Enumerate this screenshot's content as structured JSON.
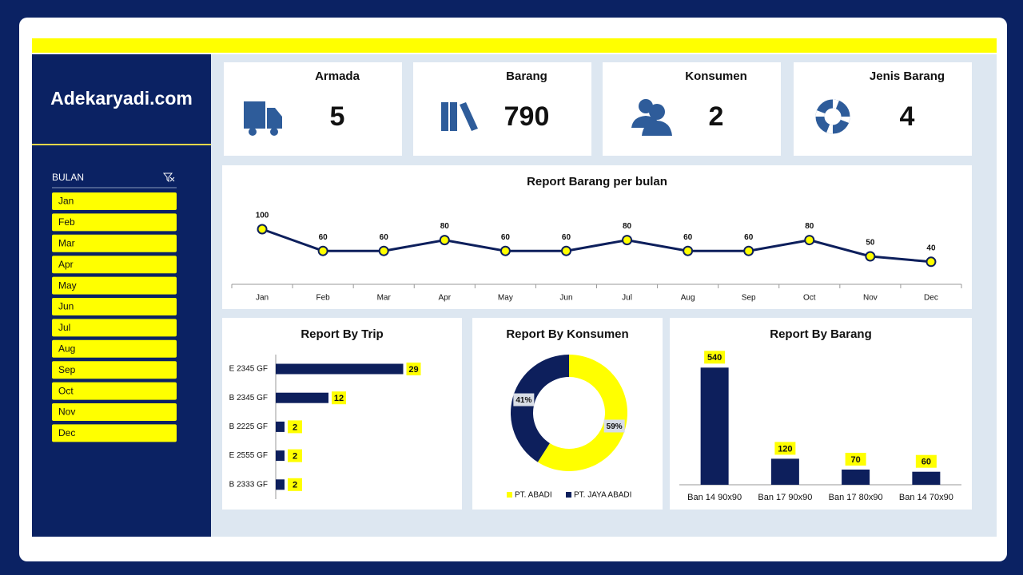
{
  "sidebar": {
    "brand": "Adekaryadi.com",
    "filter_label": "BULAN",
    "months": [
      "Jan",
      "Feb",
      "Mar",
      "Apr",
      "May",
      "Jun",
      "Jul",
      "Aug",
      "Sep",
      "Oct",
      "Nov",
      "Dec"
    ]
  },
  "kpis": [
    {
      "label": "Armada",
      "value": 5
    },
    {
      "label": "Barang",
      "value": 790
    },
    {
      "label": "Konsumen",
      "value": 2
    },
    {
      "label": "Jenis Barang",
      "value": 4
    }
  ],
  "chart_data": [
    {
      "type": "line",
      "title": "Report Barang per bulan",
      "categories": [
        "Jan",
        "Feb",
        "Mar",
        "Apr",
        "May",
        "Jun",
        "Jul",
        "Aug",
        "Sep",
        "Oct",
        "Nov",
        "Dec"
      ],
      "values": [
        100,
        60,
        60,
        80,
        60,
        60,
        80,
        60,
        60,
        80,
        50,
        40
      ],
      "color": "#0d1f5c",
      "marker_color": "#ffff00",
      "ylim": [
        0,
        100
      ]
    },
    {
      "type": "bar",
      "orientation": "horizontal",
      "title": "Report By Trip",
      "categories": [
        "E 2345 GF",
        "B 2345 GF",
        "B 2225 GF",
        "E 2555 GF",
        "B 2333 GF"
      ],
      "values": [
        29,
        12,
        2,
        2,
        2
      ],
      "color": "#0d1f5c",
      "xlim": [
        0,
        30
      ]
    },
    {
      "type": "donut",
      "title": "Report By Konsumen",
      "categories": [
        "PT. ABADI",
        "PT. JAYA ABADI"
      ],
      "values": [
        59,
        41
      ],
      "value_labels": [
        "59%",
        "41%"
      ],
      "colors": [
        "#ffff00",
        "#0d1f5c"
      ]
    },
    {
      "type": "bar",
      "orientation": "vertical",
      "title": "Report By Barang",
      "categories": [
        "Ban 14 90x90",
        "Ban 17 90x90",
        "Ban 17 80x90",
        "Ban 14 70x90"
      ],
      "values": [
        540,
        120,
        70,
        60
      ],
      "color": "#0d1f5c",
      "ylim": [
        0,
        600
      ]
    }
  ]
}
